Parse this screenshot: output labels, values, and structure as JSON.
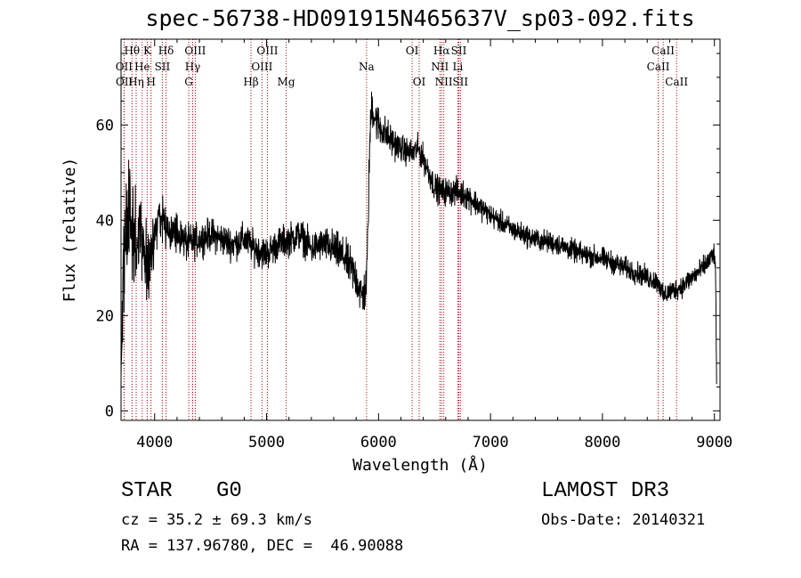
{
  "chart_data": {
    "type": "line",
    "title": "spec-56738-HD091915N465637V_sp03-092.fits",
    "xlabel": "Wavelength (Å)",
    "ylabel": "Flux (relative)",
    "xlim": [
      3700,
      9050
    ],
    "ylim": [
      -2,
      78
    ],
    "xticks": [
      4000,
      5000,
      6000,
      7000,
      8000,
      9000
    ],
    "xtick_labels": [
      "4000",
      "5000",
      "6000",
      "7000",
      "8000",
      "9000"
    ],
    "yticks": [
      0,
      20,
      40,
      60
    ],
    "ytick_labels": [
      "0",
      "20",
      "40",
      "60"
    ],
    "noise_seed": 20140321,
    "series": [
      {
        "name": "flux",
        "x": [
          3700,
          3720,
          3740,
          3760,
          3780,
          3800,
          3850,
          3900,
          3950,
          4000,
          4050,
          4100,
          4200,
          4300,
          4400,
          4500,
          4600,
          4700,
          4800,
          4900,
          5000,
          5100,
          5200,
          5300,
          5400,
          5500,
          5600,
          5700,
          5800,
          5850,
          5880,
          5895,
          5905,
          5920,
          5940,
          5960,
          6000,
          6100,
          6200,
          6300,
          6350,
          6400,
          6450,
          6500,
          6562,
          6600,
          6700,
          6800,
          7000,
          7200,
          7400,
          7600,
          7800,
          8000,
          8200,
          8400,
          8500,
          8542,
          8600,
          8700,
          8800,
          8900,
          9000,
          9010,
          9020
        ],
        "y": [
          8,
          30,
          35,
          40,
          45,
          38,
          35,
          36,
          30,
          38,
          41,
          39,
          37,
          35,
          36,
          37,
          36,
          35,
          36,
          34,
          33,
          35,
          36,
          37,
          34,
          35,
          34,
          32,
          28,
          24,
          25,
          28,
          38,
          55,
          65,
          62,
          60,
          57,
          55,
          54,
          55,
          53,
          50,
          47,
          46,
          46,
          46,
          45,
          41,
          38,
          36,
          35,
          33,
          32,
          30,
          28,
          27,
          24,
          25,
          26,
          28,
          30,
          33,
          29,
          5
        ],
        "noise_amplitude": [
          2,
          10,
          12,
          14,
          14,
          10,
          9,
          8,
          7,
          5,
          4,
          4,
          3.5,
          3.5,
          3,
          3,
          3,
          3,
          3,
          3,
          3,
          3,
          3,
          3,
          3,
          3,
          3.5,
          3.5,
          4,
          4,
          4,
          4,
          4,
          4,
          4,
          4,
          3.5,
          3,
          2.5,
          2.5,
          2.5,
          2.5,
          2.5,
          2.5,
          2.5,
          2.5,
          2.5,
          2.5,
          2,
          2,
          2,
          2,
          2,
          2,
          2,
          2,
          2,
          2,
          2,
          2,
          2,
          2,
          2,
          2,
          2
        ]
      }
    ],
    "lines": [
      {
        "label": "Hθ",
        "x": 3798,
        "row": 0
      },
      {
        "label": "OII",
        "x": 3727,
        "row": 1
      },
      {
        "label": "OII",
        "x": 3729,
        "row": 2
      },
      {
        "label": "Hη",
        "x": 3835,
        "row": 2
      },
      {
        "label": "He",
        "x": 3889,
        "row": 1
      },
      {
        "label": "K",
        "x": 3934,
        "row": 0
      },
      {
        "label": "H",
        "x": 3968,
        "row": 2
      },
      {
        "label": "SII",
        "x": 4069,
        "row": 1
      },
      {
        "label": "Hδ",
        "x": 4102,
        "row": 0
      },
      {
        "label": "OIII",
        "x": 4363,
        "row": 0
      },
      {
        "label": "Hγ",
        "x": 4340,
        "row": 1
      },
      {
        "label": "G",
        "x": 4305,
        "row": 2
      },
      {
        "label": "Hβ",
        "x": 4861,
        "row": 2
      },
      {
        "label": "OIII",
        "x": 5007,
        "row": 0
      },
      {
        "label": "OIII",
        "x": 4959,
        "row": 1
      },
      {
        "label": "Mg",
        "x": 5175,
        "row": 2
      },
      {
        "label": "Na",
        "x": 5893,
        "row": 1
      },
      {
        "label": "OI",
        "x": 6300,
        "row": 0
      },
      {
        "label": "OI",
        "x": 6363,
        "row": 2
      },
      {
        "label": "Hα",
        "x": 6563,
        "row": 0
      },
      {
        "label": "NII",
        "x": 6548,
        "row": 1
      },
      {
        "label": "NII",
        "x": 6583,
        "row": 2
      },
      {
        "label": "SII",
        "x": 6717,
        "row": 0
      },
      {
        "label": "Li",
        "x": 6708,
        "row": 1
      },
      {
        "label": "SII",
        "x": 6731,
        "row": 2
      },
      {
        "label": "CaII",
        "x": 8542,
        "row": 0
      },
      {
        "label": "CaII",
        "x": 8498,
        "row": 1
      },
      {
        "label": "CaII",
        "x": 8662,
        "row": 2
      }
    ]
  },
  "info": {
    "class": "STAR",
    "subclass": "G0",
    "survey": "LAMOST DR3",
    "cz": "cz = 35.2 ± 69.3 km/s",
    "obs_date": "Obs-Date: 20140321",
    "radec": "RA = 137.96780, DEC =  46.90088"
  },
  "colors": {
    "line_marker": "#aa0000",
    "spectrum": "#000000",
    "background": "#ffffff"
  }
}
